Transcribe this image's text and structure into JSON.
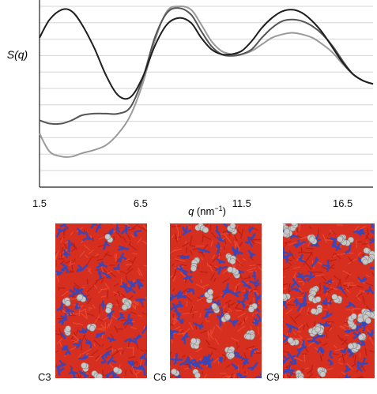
{
  "chart_data": {
    "type": "line",
    "ylabel": "S(q)",
    "xlabel": "q (nm⁻¹)",
    "xlabel_main": "q",
    "xlabel_unit_base": " (nm",
    "xlabel_unit_exp": "−1",
    "xlabel_unit_close": ")",
    "x_ticks": [
      "1.5",
      "6.5",
      "11.5",
      "16.5"
    ],
    "x_tick_values": [
      1.5,
      6.5,
      11.5,
      16.5
    ],
    "xlim": [
      1.5,
      18.0
    ],
    "ylim": [
      0,
      1
    ],
    "grid": "horizontal",
    "y_ticks_shown": false,
    "series": [
      {
        "color": "#1e1e1e",
        "x": [
          1.5,
          2.0,
          2.6,
          3.1,
          3.6,
          4.2,
          4.8,
          5.4,
          6.0,
          6.6,
          7.2,
          7.8,
          8.4,
          9.0,
          9.5,
          10.0,
          10.5,
          11.0,
          11.5,
          12.0,
          12.5,
          13.0,
          13.5,
          14.0,
          14.5,
          15.0,
          15.5,
          16.0,
          16.5,
          17.0,
          17.5,
          18.0
        ],
        "y": [
          0.8,
          0.91,
          0.97,
          0.96,
          0.88,
          0.74,
          0.57,
          0.45,
          0.44,
          0.56,
          0.75,
          0.88,
          0.92,
          0.89,
          0.8,
          0.73,
          0.7,
          0.7,
          0.72,
          0.78,
          0.86,
          0.92,
          0.96,
          0.97,
          0.95,
          0.9,
          0.83,
          0.74,
          0.65,
          0.58,
          0.54,
          0.52
        ]
      },
      {
        "color": "#555555",
        "x": [
          1.5,
          2.0,
          2.6,
          3.1,
          3.6,
          4.2,
          4.8,
          5.4,
          6.0,
          6.6,
          7.2,
          7.8,
          8.4,
          9.0,
          9.5,
          10.0,
          10.5,
          11.0,
          11.5,
          12.0,
          12.5,
          13.0,
          13.5,
          14.0,
          14.5,
          15.0,
          15.5,
          16.0,
          16.5,
          17.0,
          17.5,
          18.0
        ],
        "y": [
          0.3,
          0.28,
          0.28,
          0.3,
          0.33,
          0.34,
          0.34,
          0.34,
          0.38,
          0.55,
          0.8,
          0.95,
          0.98,
          0.94,
          0.84,
          0.75,
          0.7,
          0.69,
          0.7,
          0.73,
          0.8,
          0.86,
          0.9,
          0.91,
          0.9,
          0.87,
          0.82,
          0.75,
          0.66,
          0.58,
          0.54,
          0.52
        ]
      },
      {
        "color": "#9a9a9a",
        "x": [
          1.5,
          2.0,
          2.6,
          3.1,
          3.6,
          4.2,
          4.8,
          5.4,
          6.0,
          6.6,
          7.2,
          7.8,
          8.4,
          9.0,
          9.5,
          10.0,
          10.5,
          11.0,
          11.5,
          12.0,
          12.5,
          13.0,
          13.5,
          14.0,
          14.5,
          15.0,
          15.5,
          16.0,
          16.5,
          17.0,
          17.5,
          18.0
        ],
        "y": [
          0.22,
          0.11,
          0.08,
          0.08,
          0.1,
          0.12,
          0.15,
          0.22,
          0.33,
          0.52,
          0.78,
          0.96,
          0.99,
          0.97,
          0.88,
          0.78,
          0.72,
          0.7,
          0.7,
          0.72,
          0.76,
          0.8,
          0.82,
          0.83,
          0.82,
          0.8,
          0.76,
          0.71,
          0.64,
          0.58,
          0.54,
          0.52
        ]
      }
    ]
  },
  "panels": [
    {
      "label": "C3",
      "grey_fraction": 0.12,
      "colors": {
        "red": "#d62e1f",
        "blue": "#3a47b8",
        "grey": "#c8c8c8"
      }
    },
    {
      "label": "C6",
      "grey_fraction": 0.28,
      "colors": {
        "red": "#d62e1f",
        "blue": "#3a47b8",
        "grey": "#c8c8c8"
      }
    },
    {
      "label": "C9",
      "grey_fraction": 0.45,
      "colors": {
        "red": "#d62e1f",
        "blue": "#3a47b8",
        "grey": "#c8c8c8"
      }
    }
  ]
}
